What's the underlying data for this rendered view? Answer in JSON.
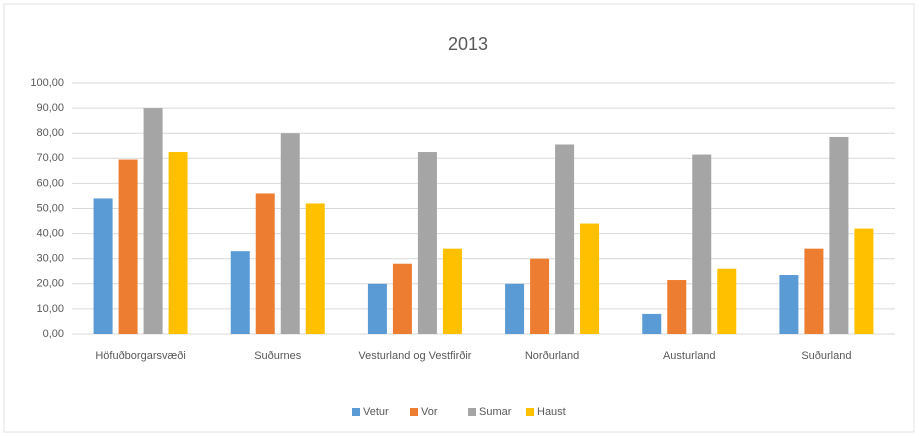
{
  "chart_data": {
    "type": "bar",
    "title": "2013",
    "categories": [
      "Höfuðborgarsvæði",
      "Suðurnes",
      "Vesturland og Vestfirðir",
      "Norðurland",
      "Austurland",
      "Suðurland"
    ],
    "series": [
      {
        "name": "Vetur",
        "color": "#5b9bd5",
        "values": [
          54,
          33,
          20,
          20,
          8,
          23.5
        ]
      },
      {
        "name": "Vor",
        "color": "#ed7d31",
        "values": [
          69.5,
          56,
          28,
          30,
          21.5,
          34
        ]
      },
      {
        "name": "Sumar",
        "color": "#a5a5a5",
        "values": [
          90,
          80,
          72.5,
          75.5,
          71.5,
          78.5
        ]
      },
      {
        "name": "Haust",
        "color": "#ffc000",
        "values": [
          72.5,
          52,
          34,
          44,
          26,
          42
        ]
      }
    ],
    "ylim": [
      0,
      100
    ],
    "yticks": [
      {
        "value": 0,
        "label": "0,00"
      },
      {
        "value": 10,
        "label": "10,00"
      },
      {
        "value": 20,
        "label": "20,00"
      },
      {
        "value": 30,
        "label": "30,00"
      },
      {
        "value": 40,
        "label": "40,00"
      },
      {
        "value": 50,
        "label": "50,00"
      },
      {
        "value": 60,
        "label": "60,00"
      },
      {
        "value": 70,
        "label": "70,00"
      },
      {
        "value": 80,
        "label": "80,00"
      },
      {
        "value": 90,
        "label": "90,00"
      },
      {
        "value": 100,
        "label": "100,00"
      }
    ],
    "grid": true,
    "legend": "bottom"
  }
}
